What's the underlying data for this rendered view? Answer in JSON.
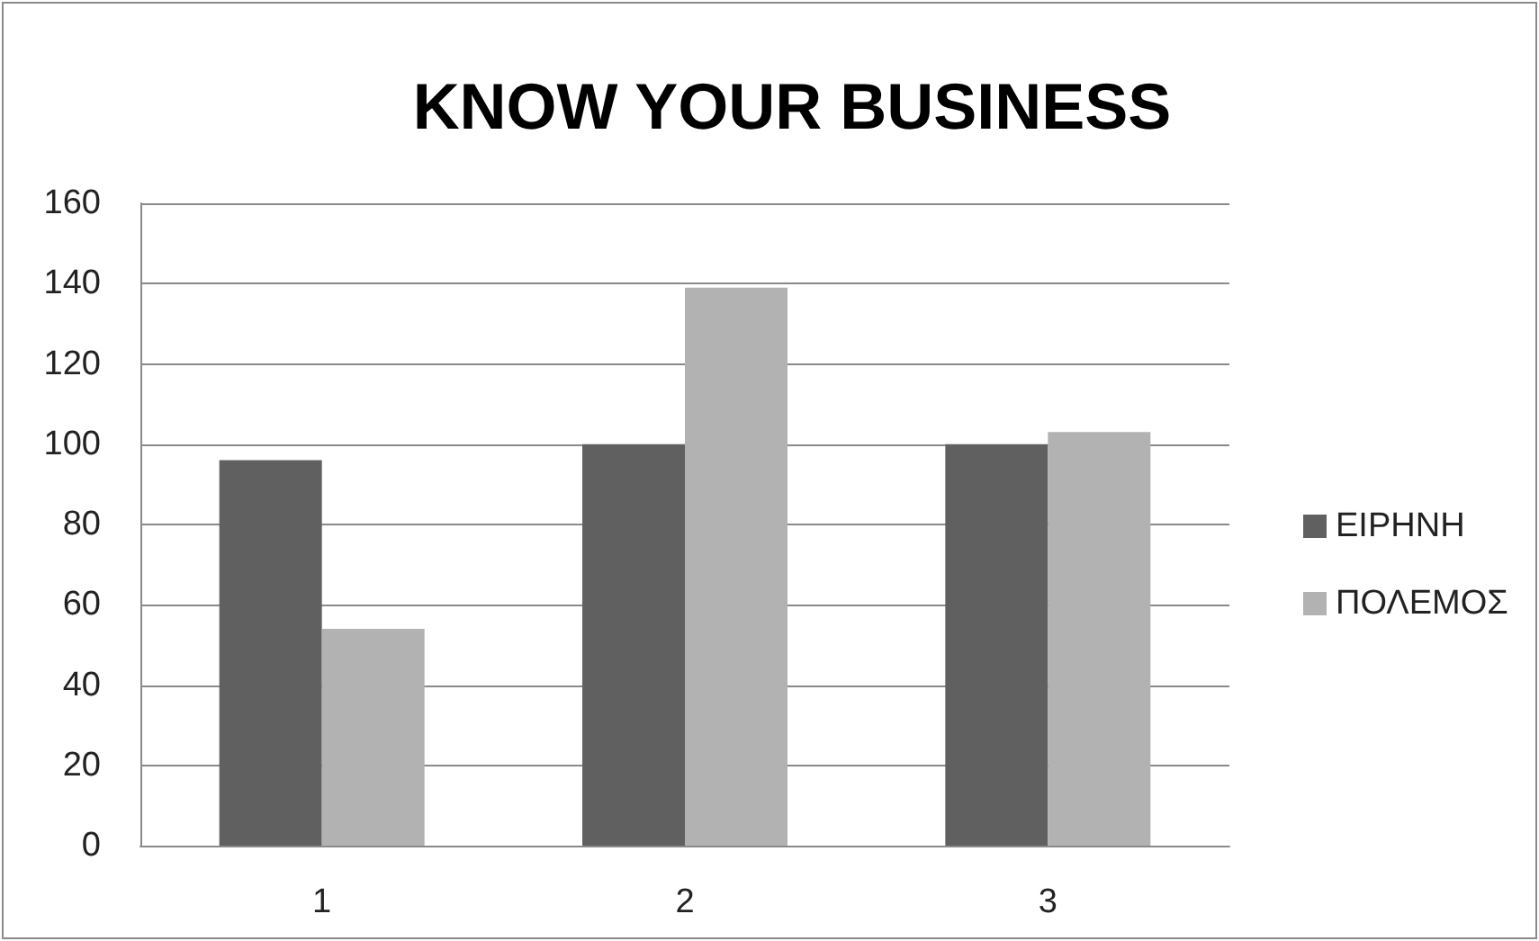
{
  "chart_data": {
    "type": "bar",
    "title": "KNOW YOUR BUSINESS",
    "categories": [
      "1",
      "2",
      "3"
    ],
    "series": [
      {
        "name": "ΕΙΡΗΝΗ",
        "color": "#606060",
        "values": [
          96,
          100,
          100
        ]
      },
      {
        "name": "ΠΟΛΕΜΟΣ",
        "color": "#b2b2b2",
        "values": [
          54,
          139,
          103
        ]
      }
    ],
    "ylim": [
      0,
      160
    ],
    "yticks": [
      0,
      20,
      40,
      60,
      80,
      100,
      120,
      140,
      160
    ],
    "grid": "y",
    "legend": "right"
  }
}
